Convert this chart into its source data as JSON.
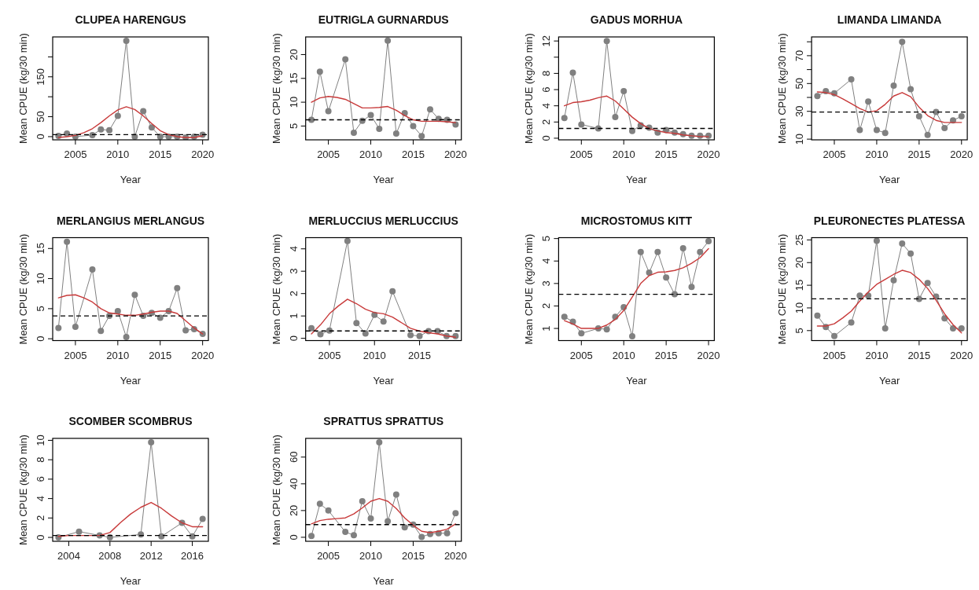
{
  "chart_data": [
    {
      "type": "line",
      "title": "CLUPEA HARENGUS",
      "xlabel": "Year",
      "ylabel": "Mean CPUE (kg/30 min)",
      "x": [
        2003,
        2004,
        2005,
        2006,
        2007,
        2008,
        2009,
        2010,
        2011,
        2012,
        2013,
        2014,
        2015,
        2016,
        2017,
        2018,
        2019,
        2020
      ],
      "xlim": [
        2002.32,
        2020.68
      ],
      "xticks": [
        2005,
        2010,
        2015,
        2020
      ],
      "ylim": [
        -8,
        250
      ],
      "yticks": [
        0,
        50,
        {
          "value": 100,
          "label": null
        },
        150,
        {
          "value": 200,
          "label": null
        }
      ],
      "grid": false,
      "series": [
        {
          "color": "#808080",
          "marker": "circle",
          "x": [
            2003,
            2004,
            2005,
            2007,
            2008,
            2009,
            2010,
            2011,
            2012,
            2013,
            2014,
            2015,
            2016,
            2017,
            2018,
            2019,
            2020
          ],
          "values": [
            2,
            8,
            0,
            4,
            18,
            16,
            52,
            240,
            0,
            64,
            23,
            0,
            0,
            0,
            -2,
            0,
            5
          ]
        },
        {
          "color": "#c83a3a",
          "marker": "none",
          "values": [
            -2,
            0,
            3,
            10,
            20,
            35,
            52,
            67,
            75,
            68,
            52,
            33,
            15,
            5,
            0,
            -2,
            -2,
            2
          ]
        }
      ],
      "ref_lines": [
        {
          "axis": "y",
          "value": 5,
          "color": "#000000",
          "line_style": "dashed"
        }
      ]
    },
    {
      "type": "line",
      "title": "EUTRIGLA GURNARDUS",
      "xlabel": "Year",
      "ylabel": "Mean CPUE (kg/30 min)",
      "x": [
        2003,
        2004,
        2005,
        2006,
        2007,
        2008,
        2009,
        2010,
        2011,
        2012,
        2013,
        2014,
        2015,
        2016,
        2017,
        2018,
        2019,
        2020
      ],
      "xlim": [
        2002.32,
        2020.68
      ],
      "xticks": [
        2005,
        2010,
        2015,
        2020
      ],
      "ylim": [
        2.1,
        23.7
      ],
      "yticks": [
        5,
        10,
        15,
        20
      ],
      "grid": false,
      "series": [
        {
          "color": "#808080",
          "marker": "circle",
          "x": [
            2003,
            2004,
            2005,
            2007,
            2008,
            2009,
            2010,
            2011,
            2012,
            2013,
            2014,
            2015,
            2016,
            2017,
            2018,
            2019,
            2020
          ],
          "values": [
            6.3,
            16.4,
            8.1,
            19,
            3.6,
            6.1,
            7.3,
            4.4,
            22.9,
            3.4,
            7.7,
            5.0,
            2.9,
            8.5,
            6.5,
            6.3,
            5.3
          ]
        },
        {
          "color": "#c83a3a",
          "marker": "none",
          "values": [
            10,
            10.9,
            11.2,
            11,
            10.6,
            9.7,
            8.8,
            8.8,
            8.9,
            9.1,
            8.3,
            7.2,
            6.3,
            6.0,
            6.0,
            6.0,
            5.9,
            5.7
          ]
        }
      ],
      "ref_lines": [
        {
          "axis": "y",
          "value": 6.3,
          "color": "#000000",
          "line_style": "dashed"
        }
      ]
    },
    {
      "type": "line",
      "title": "GADUS MORHUA",
      "xlabel": "Year",
      "ylabel": "Mean CPUE (kg/30 min)",
      "x": [
        2003,
        2004,
        2005,
        2006,
        2007,
        2008,
        2009,
        2010,
        2011,
        2012,
        2013,
        2014,
        2015,
        2016,
        2017,
        2018,
        2019,
        2020
      ],
      "xlim": [
        2002.32,
        2020.68
      ],
      "xticks": [
        2005,
        2010,
        2015,
        2020
      ],
      "ylim": [
        -0.2,
        12.5
      ],
      "yticks": [
        0,
        2,
        4,
        6,
        8,
        {
          "value": 10,
          "label": null
        },
        12
      ],
      "grid": false,
      "series": [
        {
          "color": "#808080",
          "marker": "circle",
          "x": [
            2003,
            2004,
            2005,
            2007,
            2008,
            2009,
            2010,
            2011,
            2012,
            2013,
            2014,
            2015,
            2016,
            2017,
            2018,
            2019,
            2020
          ],
          "values": [
            2.5,
            8.1,
            1.7,
            1.2,
            12,
            2.6,
            5.8,
            0.9,
            1.6,
            1.3,
            0.7,
            1.0,
            0.7,
            0.5,
            0.3,
            0.3,
            0.3
          ]
        },
        {
          "color": "#c83a3a",
          "marker": "none",
          "values": [
            4.0,
            4.4,
            4.5,
            4.7,
            5.0,
            5.2,
            4.6,
            3.6,
            2.6,
            1.8,
            1.2,
            0.9,
            0.7,
            0.6,
            0.4,
            0.3,
            0.2,
            0.2
          ]
        }
      ],
      "ref_lines": [
        {
          "axis": "y",
          "value": 1.2,
          "color": "#000000",
          "line_style": "dashed"
        }
      ]
    },
    {
      "type": "line",
      "title": "LIMANDA LIMANDA",
      "xlabel": "Year",
      "ylabel": "Mean CPUE (kg/30 min)",
      "x": [
        2003,
        2004,
        2005,
        2006,
        2007,
        2008,
        2009,
        2010,
        2011,
        2012,
        2013,
        2014,
        2015,
        2016,
        2017,
        2018,
        2019,
        2020
      ],
      "xlim": [
        2002.32,
        2020.68
      ],
      "xticks": [
        2005,
        2010,
        2015,
        2020
      ],
      "ylim": [
        9.5,
        83.5
      ],
      "yticks": [
        10,
        {
          "value": 20,
          "label": null
        },
        30,
        {
          "value": 40,
          "label": null
        },
        50,
        {
          "value": 60,
          "label": null
        },
        70,
        {
          "value": 80,
          "label": null
        }
      ],
      "grid": false,
      "series": [
        {
          "color": "#808080",
          "marker": "circle",
          "x": [
            2003,
            2004,
            2005,
            2007,
            2008,
            2009,
            2010,
            2011,
            2012,
            2013,
            2014,
            2015,
            2016,
            2017,
            2018,
            2019,
            2020
          ],
          "values": [
            41,
            44.5,
            43,
            53,
            16.5,
            37,
            16.5,
            14.5,
            48.5,
            80,
            46,
            26.5,
            13,
            29.5,
            18,
            23.5,
            26.5
          ]
        },
        {
          "color": "#c83a3a",
          "marker": "none",
          "values": [
            44,
            43.5,
            42,
            39,
            35.5,
            32,
            29.5,
            30.5,
            35,
            41,
            43.5,
            40.5,
            33,
            27,
            23.5,
            22,
            22,
            22
          ]
        }
      ],
      "ref_lines": [
        {
          "axis": "y",
          "value": 29.5,
          "color": "#000000",
          "line_style": "dashed"
        }
      ]
    },
    {
      "type": "line",
      "title": "MERLANGIUS MERLANGUS",
      "xlabel": "Year",
      "ylabel": "Mean CPUE (kg/30 min)",
      "x": [
        2003,
        2004,
        2005,
        2006,
        2007,
        2008,
        2009,
        2010,
        2011,
        2012,
        2013,
        2014,
        2015,
        2016,
        2017,
        2018,
        2019,
        2020
      ],
      "xlim": [
        2002.32,
        2020.68
      ],
      "xticks": [
        2005,
        2010,
        2015,
        2020
      ],
      "ylim": [
        -0.3,
        16.8
      ],
      "yticks": [
        0,
        5,
        10,
        15
      ],
      "grid": false,
      "series": [
        {
          "color": "#808080",
          "marker": "circle",
          "x": [
            2003,
            2004,
            2005,
            2007,
            2008,
            2009,
            2010,
            2011,
            2012,
            2013,
            2014,
            2015,
            2016,
            2017,
            2018,
            2019,
            2020
          ],
          "values": [
            1.8,
            16.1,
            2.0,
            11.5,
            1.3,
            3.8,
            4.6,
            0.3,
            7.3,
            3.8,
            4.3,
            3.5,
            4.6,
            8.4,
            1.4,
            1.6,
            0.8
          ]
        },
        {
          "color": "#c83a3a",
          "marker": "none",
          "values": [
            6.8,
            7.2,
            7.3,
            6.8,
            6.1,
            5.0,
            4.3,
            4.1,
            3.9,
            3.9,
            4.1,
            4.4,
            4.6,
            4.6,
            4.2,
            3.0,
            1.8,
            0.8
          ]
        }
      ],
      "ref_lines": [
        {
          "axis": "y",
          "value": 3.8,
          "color": "#000000",
          "line_style": "dashed"
        }
      ]
    },
    {
      "type": "line",
      "title": "MERLUCCIUS MERLUCCIUS",
      "xlabel": "Year",
      "ylabel": "Mean CPUE (kg/30 min)",
      "x": [
        2003,
        2004,
        2005,
        2006,
        2007,
        2008,
        2009,
        2010,
        2011,
        2012,
        2013,
        2014,
        2015,
        2016,
        2017,
        2018,
        2019
      ],
      "xlim": [
        2002.36,
        2019.64
      ],
      "xticks": [
        2005,
        2010,
        2015
      ],
      "ylim": [
        -0.1,
        4.5
      ],
      "yticks": [
        0,
        1,
        2,
        3,
        4
      ],
      "grid": false,
      "series": [
        {
          "color": "#808080",
          "marker": "circle",
          "x": [
            2003,
            2004,
            2005,
            2007,
            2008,
            2009,
            2010,
            2011,
            2012,
            2014,
            2015,
            2016,
            2017,
            2018,
            2019
          ],
          "values": [
            0.45,
            0.18,
            0.35,
            4.35,
            0.68,
            0.22,
            1.05,
            0.75,
            2.1,
            0.15,
            0.1,
            0.32,
            0.32,
            0.1,
            0.1
          ]
        },
        {
          "color": "#c83a3a",
          "marker": "none",
          "values": [
            0.2,
            0.6,
            1.1,
            1.45,
            1.75,
            1.55,
            1.3,
            1.15,
            1.1,
            0.95,
            0.7,
            0.45,
            0.32,
            0.25,
            0.2,
            0.1,
            0.05
          ]
        }
      ],
      "ref_lines": [
        {
          "axis": "y",
          "value": 0.33,
          "color": "#000000",
          "line_style": "dashed"
        }
      ]
    },
    {
      "type": "line",
      "title": "MICROSTOMUS KITT",
      "xlabel": "Year",
      "ylabel": "Mean CPUE (kg/30 min)",
      "x": [
        2003,
        2004,
        2005,
        2006,
        2007,
        2008,
        2009,
        2010,
        2011,
        2012,
        2013,
        2014,
        2015,
        2016,
        2017,
        2018,
        2019,
        2020
      ],
      "xlim": [
        2002.32,
        2020.68
      ],
      "xticks": [
        2005,
        2010,
        2015,
        2020
      ],
      "ylim": [
        0.46,
        5.04
      ],
      "yticks": [
        1,
        2,
        3,
        4,
        5
      ],
      "grid": false,
      "series": [
        {
          "color": "#808080",
          "marker": "circle",
          "x": [
            2003,
            2004,
            2005,
            2007,
            2008,
            2009,
            2010,
            2011,
            2012,
            2013,
            2014,
            2015,
            2016,
            2017,
            2018,
            2019,
            2020
          ],
          "values": [
            1.52,
            1.3,
            0.78,
            1.0,
            0.96,
            1.52,
            1.95,
            0.65,
            4.4,
            3.48,
            4.4,
            3.27,
            2.52,
            4.57,
            2.85,
            4.4,
            4.88
          ]
        },
        {
          "color": "#c83a3a",
          "marker": "none",
          "values": [
            1.35,
            1.2,
            1.0,
            1.0,
            1.0,
            1.15,
            1.4,
            1.8,
            2.4,
            3.0,
            3.35,
            3.5,
            3.52,
            3.58,
            3.7,
            3.9,
            4.15,
            4.55
          ]
        }
      ],
      "ref_lines": [
        {
          "axis": "y",
          "value": 2.52,
          "color": "#000000",
          "line_style": "dashed"
        }
      ]
    },
    {
      "type": "line",
      "title": "PLEURONECTES PLATESSA",
      "xlabel": "Year",
      "ylabel": "Mean CPUE (kg/30 min)",
      "x": [
        2003,
        2004,
        2005,
        2006,
        2007,
        2008,
        2009,
        2010,
        2011,
        2012,
        2013,
        2014,
        2015,
        2016,
        2017,
        2018,
        2019,
        2020
      ],
      "xlim": [
        2002.32,
        2020.68
      ],
      "xticks": [
        2005,
        2010,
        2015,
        2020
      ],
      "ylim": [
        2.8,
        25.5
      ],
      "yticks": [
        5,
        10,
        15,
        20,
        25
      ],
      "grid": false,
      "series": [
        {
          "color": "#808080",
          "marker": "circle",
          "x": [
            2003,
            2004,
            2005,
            2007,
            2008,
            2009,
            2010,
            2011,
            2012,
            2013,
            2014,
            2015,
            2016,
            2017,
            2018,
            2019,
            2020
          ],
          "values": [
            8.3,
            5.8,
            3.8,
            6.8,
            12.7,
            12.7,
            24.8,
            5.5,
            16.1,
            24.2,
            22.0,
            12.0,
            15.5,
            12.5,
            7.7,
            5.5,
            5.5
          ]
        },
        {
          "color": "#c83a3a",
          "marker": "none",
          "values": [
            6,
            6,
            6.5,
            7.8,
            9.3,
            11.5,
            13.5,
            15.2,
            16.3,
            17.4,
            18.3,
            17.8,
            16.3,
            14.3,
            11.7,
            8.7,
            6.3,
            4.5
          ]
        }
      ],
      "ref_lines": [
        {
          "axis": "y",
          "value": 12,
          "color": "#000000",
          "line_style": "dashed"
        }
      ]
    },
    {
      "type": "line",
      "title": "SCOMBER SCOMBRUS",
      "xlabel": "Year",
      "ylabel": "Mean CPUE (kg/30 min)",
      "x": [
        2003,
        2004,
        2005,
        2006,
        2007,
        2008,
        2009,
        2010,
        2011,
        2012,
        2013,
        2014,
        2015,
        2016,
        2017
      ],
      "xlim": [
        2002.44,
        2017.56
      ],
      "xticks": [
        2004,
        2008,
        2012,
        2016
      ],
      "ylim": [
        -0.4,
        10.2
      ],
      "yticks": [
        0,
        2,
        4,
        6,
        8,
        10
      ],
      "grid": false,
      "series": [
        {
          "color": "#808080",
          "marker": "circle",
          "x": [
            2003,
            2005,
            2007,
            2008,
            2011,
            2012,
            2013,
            2015,
            2016,
            2017
          ],
          "values": [
            0,
            0.6,
            0.2,
            0,
            0.3,
            9.8,
            0.1,
            1.5,
            0.1,
            1.9
          ]
        },
        {
          "color": "#c83a3a",
          "marker": "none",
          "values": [
            0.1,
            0.2,
            0.2,
            0.2,
            0.2,
            0.5,
            1.5,
            2.4,
            3.1,
            3.6,
            3.0,
            2.2,
            1.5,
            1.1,
            1.1
          ]
        }
      ],
      "ref_lines": [
        {
          "axis": "y",
          "value": 0.2,
          "color": "#000000",
          "line_style": "dashed"
        }
      ]
    },
    {
      "type": "line",
      "title": "SPRATTUS SPRATTUS",
      "xlabel": "Year",
      "ylabel": "Mean CPUE (kg/30 min)",
      "x": [
        2003,
        2004,
        2005,
        2006,
        2007,
        2008,
        2009,
        2010,
        2011,
        2012,
        2013,
        2014,
        2015,
        2016,
        2017,
        2018,
        2019,
        2020
      ],
      "xlim": [
        2002.32,
        2020.68
      ],
      "xticks": [
        2005,
        2010,
        2015,
        2020
      ],
      "ylim": [
        -3,
        74
      ],
      "yticks": [
        0,
        20,
        40,
        60
      ],
      "grid": false,
      "series": [
        {
          "color": "#808080",
          "marker": "circle",
          "x": [
            2003,
            2004,
            2005,
            2007,
            2008,
            2009,
            2010,
            2011,
            2012,
            2013,
            2014,
            2015,
            2016,
            2017,
            2018,
            2019,
            2020
          ],
          "values": [
            1,
            25,
            20,
            4,
            1.5,
            27,
            14,
            71,
            12,
            32,
            7.5,
            9.5,
            0.3,
            2.5,
            3,
            3,
            18
          ]
        },
        {
          "color": "#c83a3a",
          "marker": "none",
          "values": [
            10,
            12.5,
            13.5,
            14,
            14.5,
            17.5,
            22,
            27,
            29,
            27,
            21.5,
            14.5,
            9,
            4.5,
            3.5,
            4.5,
            6,
            10
          ]
        }
      ],
      "ref_lines": [
        {
          "axis": "y",
          "value": 9.5,
          "color": "#000000",
          "line_style": "dashed"
        }
      ]
    }
  ]
}
